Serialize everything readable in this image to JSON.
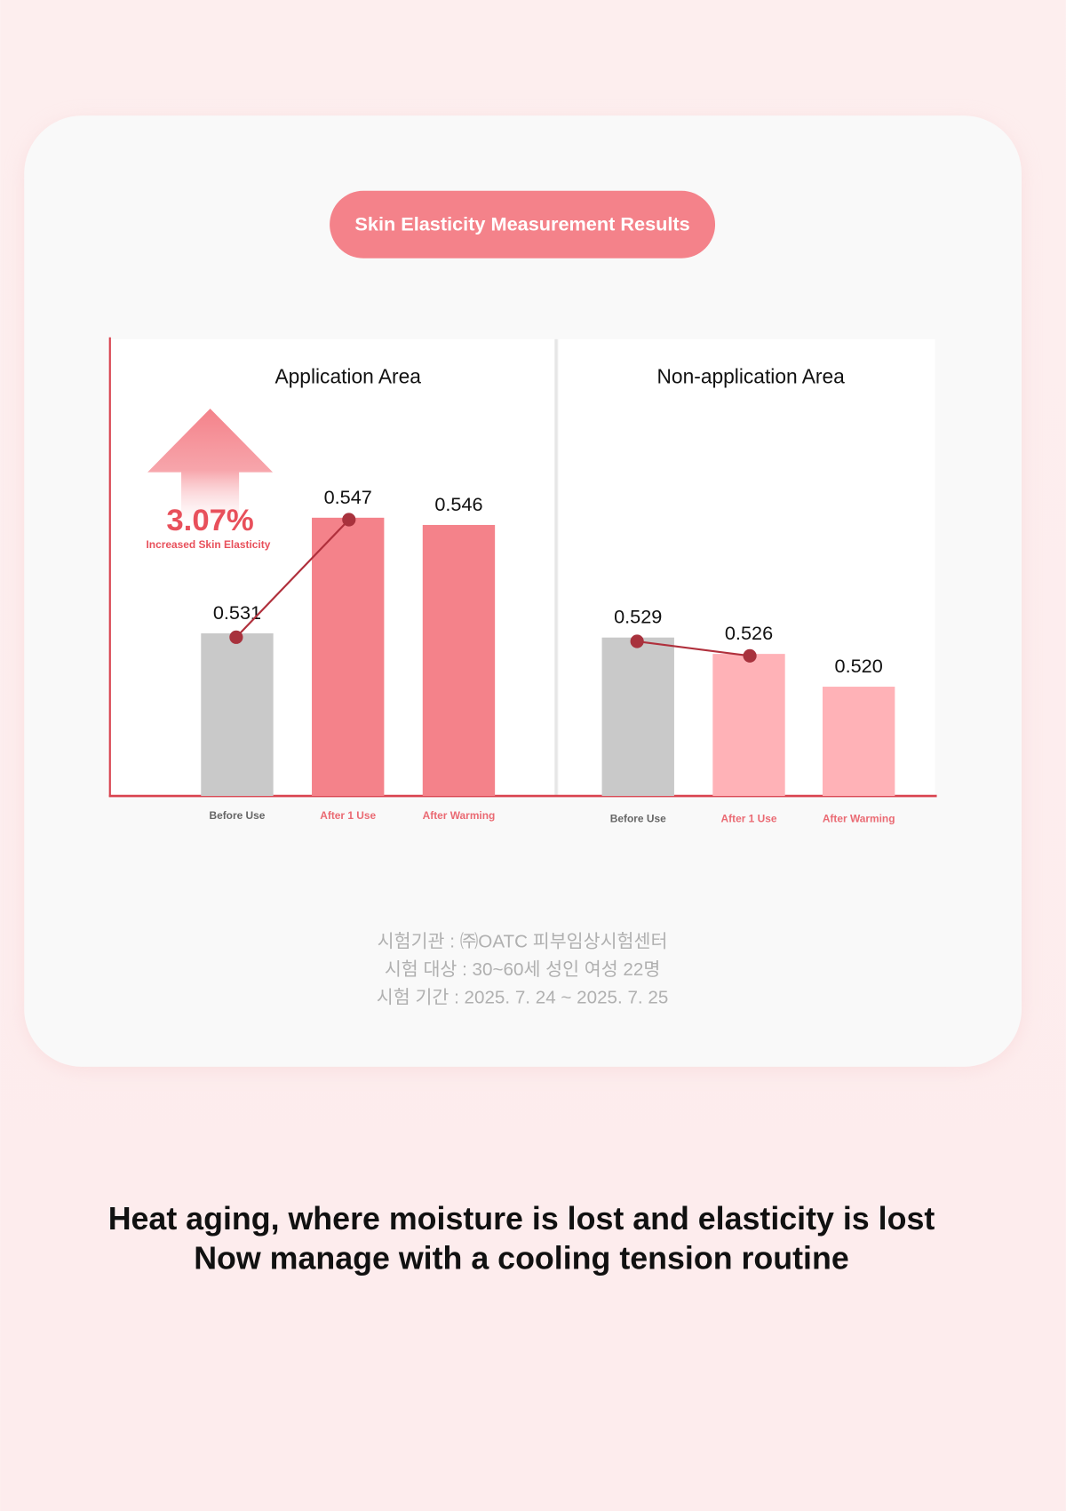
{
  "header": {
    "badge": "Skin Elasticity Measurement Results"
  },
  "chart_data": [
    {
      "type": "bar",
      "title": "Application Area",
      "categories": [
        "Before Use",
        "After 1 Use",
        "After Warming"
      ],
      "values": [
        0.531,
        0.547,
        0.546
      ],
      "value_labels": [
        "0.531",
        "0.547",
        "0.546"
      ],
      "colors": [
        "#c9c9c9",
        "#f4828a",
        "#f4828a"
      ],
      "label_colors": [
        "#666666",
        "#ea6a73",
        "#ea6a73"
      ],
      "ylim": [
        0.5085,
        0.5717
      ],
      "annotation": {
        "value": "3.07%",
        "text": "Increased Skin Elasticity"
      }
    },
    {
      "type": "bar",
      "title": "Non-application Area",
      "categories": [
        "Before Use",
        "After 1 Use",
        "After Warming"
      ],
      "values": [
        0.529,
        0.526,
        0.52
      ],
      "value_labels": [
        "0.529",
        "0.526",
        "0.520"
      ],
      "colors": [
        "#c9c9c9",
        "#ffb2b7",
        "#ffb2b7"
      ],
      "label_colors": [
        "#666666",
        "#ea6a73",
        "#ea6a73"
      ],
      "ylim": [
        0.5,
        0.5836
      ]
    }
  ],
  "footnote": [
    "시험기관 : ㈜OATC 피부임상시험센터",
    "시험 대상 : 30~60세 성인 여성 22명",
    "시험 기간 : 2025. 7. 24 ~ 2025. 7. 25"
  ],
  "headline": [
    "Heat aging, where moisture is lost and elasticity is lost",
    "Now manage with a cooling tension routine"
  ]
}
